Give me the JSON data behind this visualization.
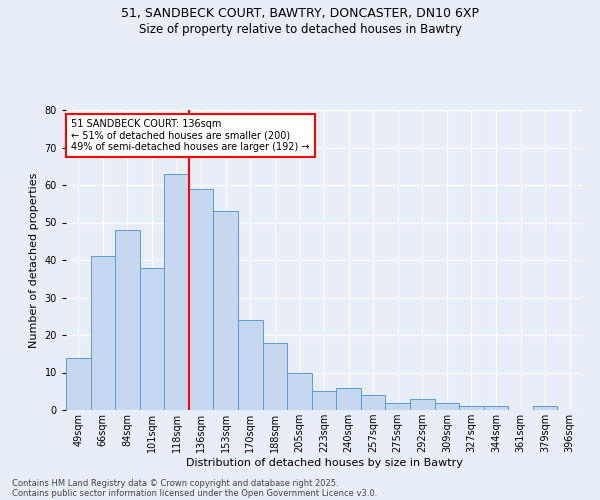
{
  "title_line1": "51, SANDBECK COURT, BAWTRY, DONCASTER, DN10 6XP",
  "title_line2": "Size of property relative to detached houses in Bawtry",
  "xlabel": "Distribution of detached houses by size in Bawtry",
  "ylabel": "Number of detached properties",
  "categories": [
    "49sqm",
    "66sqm",
    "84sqm",
    "101sqm",
    "118sqm",
    "136sqm",
    "153sqm",
    "170sqm",
    "188sqm",
    "205sqm",
    "223sqm",
    "240sqm",
    "257sqm",
    "275sqm",
    "292sqm",
    "309sqm",
    "327sqm",
    "344sqm",
    "361sqm",
    "379sqm",
    "396sqm"
  ],
  "values": [
    14,
    41,
    48,
    38,
    63,
    59,
    53,
    24,
    18,
    10,
    5,
    6,
    4,
    2,
    3,
    2,
    1,
    1,
    0,
    1,
    0
  ],
  "bar_color": "#c5d8f0",
  "bar_edge_color": "#5b9bd5",
  "red_line_index": 5,
  "annotation_text": "51 SANDBECK COURT: 136sqm\n← 51% of detached houses are smaller (200)\n49% of semi-detached houses are larger (192) →",
  "annotation_box_color": "white",
  "annotation_box_edge_color": "red",
  "ylim": [
    0,
    80
  ],
  "yticks": [
    0,
    10,
    20,
    30,
    40,
    50,
    60,
    70,
    80
  ],
  "background_color": "#e8eef7",
  "plot_bg_color": "#e8eef7",
  "footer_line1": "Contains HM Land Registry data © Crown copyright and database right 2025.",
  "footer_line2": "Contains public sector information licensed under the Open Government Licence v3.0.",
  "title_fontsize": 9,
  "subtitle_fontsize": 8.5,
  "annotation_fontsize": 7,
  "tick_fontsize": 7,
  "xlabel_fontsize": 8,
  "ylabel_fontsize": 8,
  "footer_fontsize": 6
}
